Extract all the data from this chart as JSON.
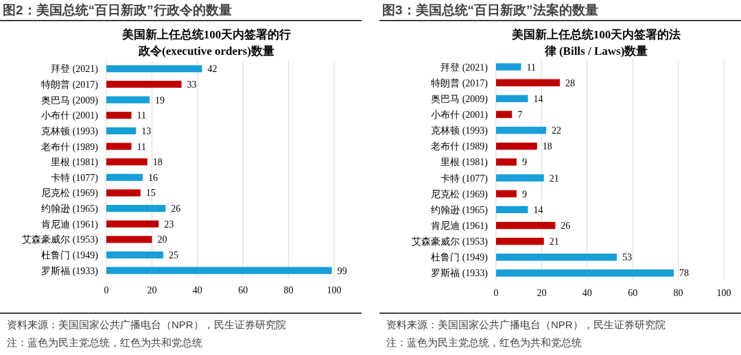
{
  "chart_data": [
    {
      "type": "bar",
      "orientation": "horizontal",
      "title": "图2：美国总统“百日新政”行政令的数量",
      "subtitle": "美国新上任总统100天内签署的行政令(executive orders)数量",
      "categories": [
        "拜登 (2021)",
        "特朗普 (2017)",
        "奥巴马 (2009)",
        "小布什 (2001)",
        "克林顿 (1993)",
        "老布什 (1989)",
        "里根 (1981)",
        "卡特 (1077)",
        "尼克松 (1969)",
        "约翰逊 (1965)",
        "肯尼迪 (1961)",
        "艾森豪威尔 (1953)",
        "杜鲁门 (1949)",
        "罗斯福 (1933)"
      ],
      "values": [
        42,
        33,
        19,
        11,
        13,
        11,
        18,
        16,
        15,
        26,
        23,
        20,
        25,
        99
      ],
      "colors": [
        "#169fd8",
        "#c00000",
        "#169fd8",
        "#c00000",
        "#169fd8",
        "#c00000",
        "#c00000",
        "#169fd8",
        "#c00000",
        "#169fd8",
        "#c00000",
        "#c00000",
        "#169fd8",
        "#169fd8"
      ],
      "xlim": [
        0,
        100
      ],
      "xticks": [
        0,
        20,
        40,
        60,
        80,
        100
      ],
      "grid": "x",
      "data_labels": true,
      "annotations": [
        "资料来源：美国国家公共广播电台（NPR），民生证券研究院",
        "注：蓝色为民主党总统，红色为共和党总统"
      ]
    },
    {
      "type": "bar",
      "orientation": "horizontal",
      "title": "图3：美国总统“百日新政”法案的数量",
      "subtitle": "美国新上任总统100天内签署的法律 (Bills / Laws)数量",
      "categories": [
        "拜登 (2021)",
        "特朗普 (2017)",
        "奥巴马 (2009)",
        "小布什 (2001)",
        "克林顿 (1993)",
        "老布什 (1989)",
        "里根 (1981)",
        "卡特 (1077)",
        "尼克松 (1969)",
        "约翰逊 (1965)",
        "肯尼迪 (1961)",
        "艾森豪威尔 (1953)",
        "杜鲁门 (1949)",
        "罗斯福 (1933)"
      ],
      "values": [
        11,
        28,
        14,
        7,
        22,
        18,
        9,
        21,
        9,
        14,
        26,
        21,
        53,
        78
      ],
      "colors": [
        "#169fd8",
        "#c00000",
        "#169fd8",
        "#c00000",
        "#169fd8",
        "#c00000",
        "#c00000",
        "#169fd8",
        "#c00000",
        "#169fd8",
        "#c00000",
        "#c00000",
        "#169fd8",
        "#169fd8"
      ],
      "xlim": [
        0,
        100
      ],
      "xticks": [
        0,
        20,
        40,
        60,
        80,
        100
      ],
      "grid": "x",
      "data_labels": true,
      "annotations": [
        "资料来源：美国国家公共广播电台（NPR），民生证券研究院",
        "注：蓝色为民主党总统，红色为共和党总统"
      ]
    }
  ]
}
